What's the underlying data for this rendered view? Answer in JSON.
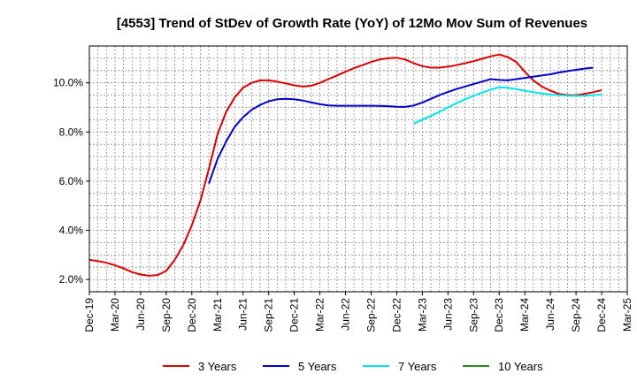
{
  "chart_data": {
    "type": "line",
    "title": "[4553]  Trend of StDev of Growth Rate (YoY) of 12Mo Mov Sum of Revenues",
    "xlabel": "",
    "ylabel": "",
    "ylim": [
      1.5,
      11.5
    ],
    "y_ticks": [
      2.0,
      4.0,
      6.0,
      8.0,
      10.0
    ],
    "y_tick_labels": [
      "2.0%",
      "4.0%",
      "6.0%",
      "8.0%",
      "10.0%"
    ],
    "x_tick_labels": [
      "Dec-19",
      "Mar-20",
      "Jun-20",
      "Sep-20",
      "Dec-20",
      "Mar-21",
      "Jun-21",
      "Sep-21",
      "Dec-21",
      "Mar-22",
      "Jun-22",
      "Sep-22",
      "Dec-22",
      "Mar-23",
      "Jun-23",
      "Sep-23",
      "Dec-23",
      "Mar-24",
      "Jun-24",
      "Sep-24",
      "Dec-24",
      "Mar-25"
    ],
    "grid": true,
    "legend_position": "bottom",
    "series": [
      {
        "name": "3 Years",
        "color": "#dd0000",
        "start_index": 0,
        "values": [
          2.8,
          2.75,
          2.68,
          2.58,
          2.45,
          2.3,
          2.2,
          2.15,
          2.18,
          2.35,
          2.8,
          3.4,
          4.2,
          5.2,
          6.5,
          7.9,
          8.8,
          9.4,
          9.8,
          10.0,
          10.1,
          10.1,
          10.05,
          9.98,
          9.9,
          9.85,
          9.88,
          10.0,
          10.15,
          10.3,
          10.45,
          10.6,
          10.72,
          10.85,
          10.95,
          11.0,
          11.02,
          10.95,
          10.8,
          10.68,
          10.62,
          10.62,
          10.66,
          10.72,
          10.8,
          10.88,
          10.98,
          11.08,
          11.15,
          11.05,
          10.85,
          10.45,
          10.1,
          9.85,
          9.68,
          9.55,
          9.5,
          9.5,
          9.55,
          9.62,
          9.7
        ]
      },
      {
        "name": "5 Years",
        "color": "#0000cc",
        "start_index": 14,
        "values": [
          5.9,
          6.9,
          7.6,
          8.2,
          8.6,
          8.9,
          9.1,
          9.25,
          9.33,
          9.35,
          9.33,
          9.28,
          9.2,
          9.13,
          9.08,
          9.07,
          9.07,
          9.07,
          9.07,
          9.07,
          9.06,
          9.05,
          9.03,
          9.02,
          9.08,
          9.2,
          9.35,
          9.5,
          9.63,
          9.75,
          9.85,
          9.95,
          10.05,
          10.15,
          10.12,
          10.1,
          10.15,
          10.2,
          10.25,
          10.3,
          10.35,
          10.42,
          10.48,
          10.53,
          10.58,
          10.62
        ]
      },
      {
        "name": "7 Years",
        "color": "#00e5ee",
        "start_index": 38,
        "values": [
          8.35,
          8.5,
          8.65,
          8.82,
          9.0,
          9.17,
          9.33,
          9.47,
          9.6,
          9.72,
          9.82,
          9.8,
          9.75,
          9.68,
          9.62,
          9.57,
          9.52,
          9.5,
          9.48,
          9.47,
          9.48,
          9.5,
          9.52
        ]
      },
      {
        "name": "10 Years",
        "color": "#228b22",
        "start_index": 0,
        "values": []
      }
    ]
  }
}
